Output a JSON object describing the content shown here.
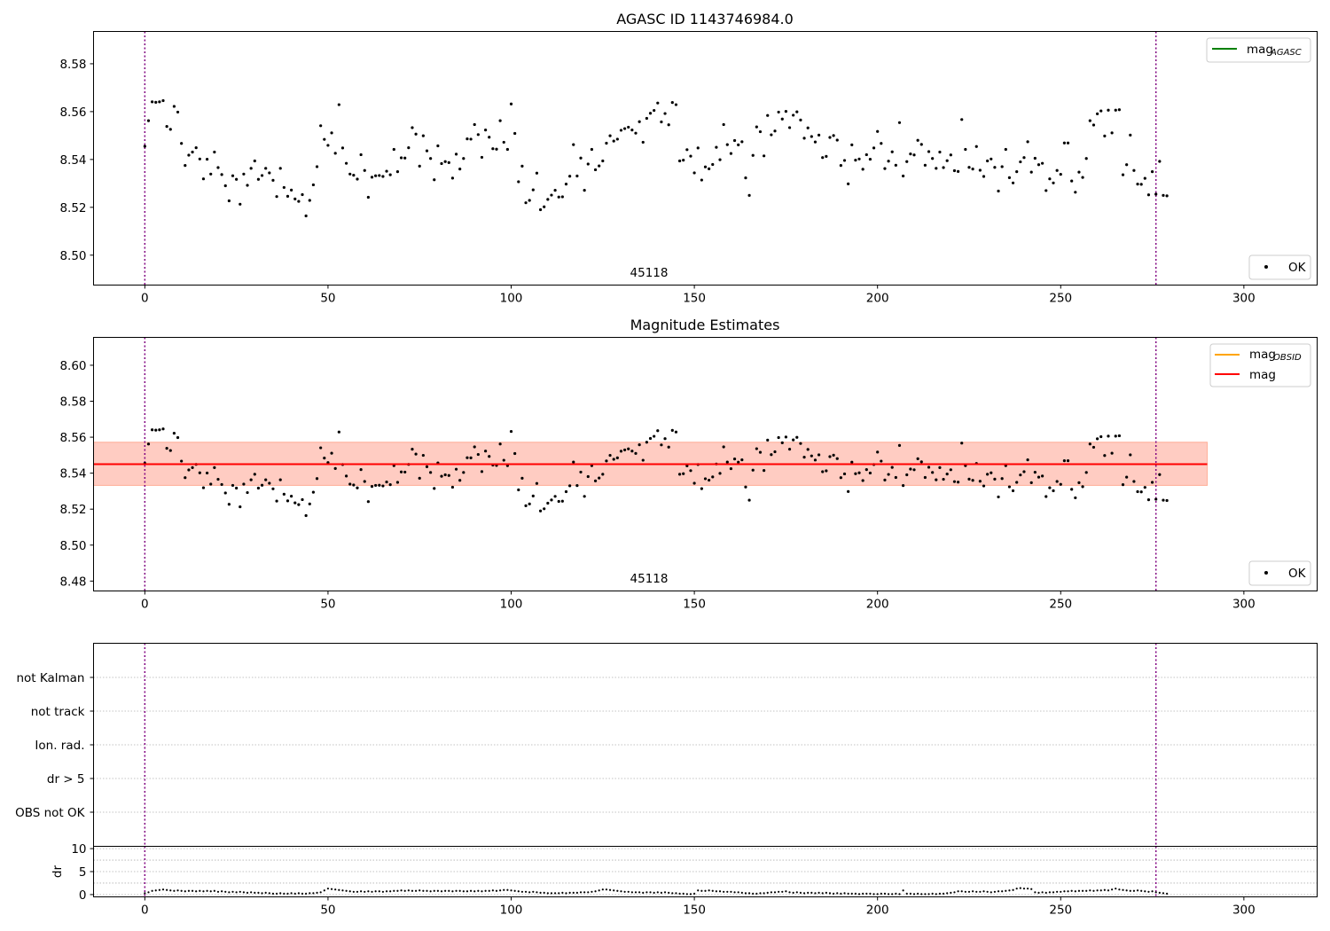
{
  "chart_data": [
    {
      "type": "scatter",
      "title": "AGASC ID 1143746984.0",
      "xlim": [
        -14,
        320
      ],
      "ylim": [
        8.4875,
        8.5935
      ],
      "xticks": [
        0,
        50,
        100,
        150,
        200,
        250,
        300
      ],
      "yticks": [
        8.5,
        8.52,
        8.54,
        8.56,
        8.58
      ],
      "ytick_labels": [
        "8.50",
        "8.52",
        "8.54",
        "8.56",
        "8.58"
      ],
      "grid": false,
      "vlines": [
        0,
        276
      ],
      "annotation": {
        "text": "45118",
        "x": 138
      },
      "legend_top": {
        "placement": "top-right",
        "entries": [
          {
            "label": "mag",
            "subscript": "AGASC",
            "color": "#008000",
            "kind": "line"
          }
        ]
      },
      "legend_bottom": {
        "placement": "bottom-right",
        "entries": [
          {
            "label": "OK",
            "kind": "point",
            "color": "#000000"
          }
        ]
      },
      "series": [
        {
          "name": "OK",
          "color": "#000000",
          "ref": "points"
        }
      ]
    },
    {
      "type": "scatter",
      "title": "Magnitude Estimates",
      "xlim": [
        -14,
        320
      ],
      "ylim": [
        8.4745,
        8.6155
      ],
      "xticks": [
        0,
        50,
        100,
        150,
        200,
        250,
        300
      ],
      "yticks": [
        8.48,
        8.5,
        8.52,
        8.54,
        8.56,
        8.58,
        8.6
      ],
      "ytick_labels": [
        "8.48",
        "8.50",
        "8.52",
        "8.54",
        "8.56",
        "8.58",
        "8.60"
      ],
      "grid": false,
      "vlines": [
        0,
        276
      ],
      "annotation": {
        "text": "45118",
        "x": 138
      },
      "hlines": [
        {
          "name": "mag_OBSID",
          "y": 8.545,
          "x": [
            -14,
            290
          ],
          "color": "#ffa500",
          "band": [
            8.5332,
            8.5572
          ],
          "band_color": "#ffa07a"
        },
        {
          "name": "mag",
          "y": 8.545,
          "x": [
            -14,
            290
          ],
          "color": "#ff0000",
          "band": [
            8.5332,
            8.5572
          ],
          "band_color": "#ffc0cb"
        }
      ],
      "legend_top": {
        "placement": "top-right",
        "entries": [
          {
            "label": "mag",
            "subscript": "OBSID",
            "color": "#ffa500",
            "kind": "line"
          },
          {
            "label": "mag",
            "subscript": "",
            "color": "#ff0000",
            "kind": "line"
          }
        ]
      },
      "legend_bottom": {
        "placement": "bottom-right",
        "entries": [
          {
            "label": "OK",
            "kind": "point",
            "color": "#000000"
          }
        ]
      },
      "series": [
        {
          "name": "OK",
          "color": "#000000",
          "ref": "points"
        }
      ]
    },
    {
      "type": "table",
      "title": "",
      "xlim": [
        -14,
        320
      ],
      "flags": [
        "not Kalman",
        "not track",
        "Ion. rad.",
        "dr > 5",
        "OBS not OK"
      ],
      "vlines": [
        0,
        276
      ]
    },
    {
      "type": "scatter",
      "title": "",
      "ylabel": "dr",
      "xlim": [
        -14,
        320
      ],
      "ylim": [
        -0.5,
        10.5
      ],
      "xticks": [
        0,
        50,
        100,
        150,
        200,
        250,
        300
      ],
      "yticks": [
        0,
        5,
        10
      ],
      "ytick_labels": [
        "0",
        "5",
        "10"
      ],
      "gridlines": [
        0,
        2.5,
        5,
        7.5,
        10
      ],
      "vlines": [
        0,
        276
      ],
      "series": [
        {
          "name": "dr",
          "color": "#000000",
          "ref": "dr"
        }
      ]
    }
  ],
  "points": [
    8.5455,
    8.5562,
    8.5641,
    8.5639,
    8.5641,
    8.5646,
    8.5538,
    8.5526,
    8.5622,
    8.5598,
    8.5467,
    8.5375,
    8.5418,
    8.5431,
    8.5449,
    8.5402,
    8.5319,
    8.5401,
    8.5339,
    8.5431,
    8.5366,
    8.5337,
    8.529,
    8.5227,
    8.5332,
    8.5317,
    8.5213,
    8.5339,
    8.5292,
    8.5363,
    8.5394,
    8.5317,
    8.5333,
    8.5363,
    8.5344,
    8.5313,
    8.5245,
    8.5363,
    8.5283,
    8.5246,
    8.5272,
    8.5235,
    8.5225,
    8.5253,
    8.5164,
    8.5229,
    8.5294,
    8.537,
    8.5541,
    8.5484,
    8.5459,
    8.5511,
    8.5426,
    8.5629,
    8.5448,
    8.5384,
    8.5339,
    8.5334,
    8.5318,
    8.542,
    8.5354,
    8.5242,
    8.5326,
    8.5332,
    8.5333,
    8.5329,
    8.5351,
    8.5336,
    8.5442,
    8.5349,
    8.5407,
    8.5406,
    8.5449,
    8.5533,
    8.5506,
    8.5372,
    8.5499,
    8.5436,
    8.5404,
    8.5315,
    8.5457,
    8.5383,
    8.5391,
    8.5387,
    8.5322,
    8.5422,
    8.536,
    8.5404,
    8.5486,
    8.5485,
    8.5546,
    8.5504,
    8.5409,
    8.5523,
    8.5493,
    8.5445,
    8.5443,
    8.5562,
    8.5472,
    8.5442,
    8.5632,
    8.5509,
    8.5307,
    8.5372,
    8.5219,
    8.5229,
    8.5273,
    8.5343,
    8.519,
    8.5202,
    8.5233,
    8.5251,
    8.5271,
    8.5243,
    8.5244,
    8.5297,
    8.533,
    8.5462,
    8.5331,
    8.5406,
    8.5271,
    8.5381,
    8.5442,
    8.5357,
    8.5373,
    8.5394,
    8.5468,
    8.5499,
    8.5477,
    8.5485,
    8.5522,
    8.5529,
    8.5535,
    8.5523,
    8.551,
    8.5558,
    8.5472,
    8.5572,
    8.5593,
    8.5605,
    8.5636,
    8.5557,
    8.5592,
    8.5545,
    8.5638,
    8.5629,
    8.5394,
    8.5397,
    8.5441,
    8.5414,
    8.5344,
    8.5448,
    8.5314,
    8.5369,
    8.5361,
    8.5379,
    8.5451,
    8.5399,
    8.5546,
    8.5462,
    8.5425,
    8.5479,
    8.5461,
    8.5474,
    8.5323,
    8.525,
    8.5417,
    8.5536,
    8.5516,
    8.5415,
    8.5584,
    8.5503,
    8.5519,
    8.5598,
    8.5569,
    8.5601,
    8.5533,
    8.5585,
    8.5599,
    8.5565,
    8.5489,
    8.5532,
    8.5496,
    8.5473,
    8.5502,
    8.5408,
    8.5413,
    8.5492,
    8.55,
    8.5481,
    8.5375,
    8.5396,
    8.5298,
    8.5461,
    8.5397,
    8.5402,
    8.5359,
    8.542,
    8.5401,
    8.5448,
    8.5517,
    8.5467,
    8.5362,
    8.5393,
    8.5432,
    8.5376,
    8.5554,
    8.5331,
    8.5391,
    8.5423,
    8.5419,
    8.548,
    8.5463,
    8.5376,
    8.5433,
    8.5404,
    8.5363,
    8.5431,
    8.5366,
    8.5395,
    8.5419,
    8.5353,
    8.535,
    8.5567,
    8.5442,
    8.5367,
    8.536,
    8.5454,
    8.5355,
    8.5329,
    8.5394,
    8.5402,
    8.5367,
    8.5268,
    8.537,
    8.5442,
    8.5324,
    8.5302,
    8.5349,
    8.539,
    8.5408,
    8.5474,
    8.5347,
    8.5405,
    8.5378,
    8.5384,
    8.527,
    8.5319,
    8.5302,
    8.5354,
    8.5338,
    8.5469,
    8.5469,
    8.531,
    8.5263,
    8.5347,
    8.5325,
    8.5404,
    8.5562,
    8.5544,
    8.5591,
    8.5603,
    8.5498,
    8.5606,
    8.5511,
    8.5606,
    8.5608,
    8.5336,
    8.5378,
    8.5502,
    8.5354,
    8.5297,
    8.5296,
    8.5321,
    8.5252,
    8.5349,
    8.5255,
    8.5392,
    8.525,
    8.5248
  ],
  "dr": [
    0.3,
    0.5,
    0.8,
    0.9,
    1.0,
    1.1,
    1.0,
    0.9,
    0.8,
    0.9,
    0.8,
    0.7,
    0.8,
    0.8,
    0.7,
    0.8,
    0.7,
    0.8,
    0.7,
    0.8,
    0.6,
    0.7,
    0.6,
    0.5,
    0.6,
    0.5,
    0.6,
    0.5,
    0.4,
    0.5,
    0.4,
    0.4,
    0.3,
    0.4,
    0.3,
    0.2,
    0.2,
    0.3,
    0.2,
    0.2,
    0.3,
    0.2,
    0.3,
    0.2,
    0.2,
    0.3,
    0.3,
    0.4,
    0.5,
    0.9,
    1.3,
    1.2,
    1.1,
    1.0,
    0.9,
    0.8,
    0.7,
    0.6,
    0.6,
    0.7,
    0.6,
    0.7,
    0.6,
    0.7,
    0.7,
    0.6,
    0.7,
    0.7,
    0.8,
    0.8,
    0.9,
    0.8,
    0.9,
    0.8,
    0.8,
    0.9,
    0.8,
    0.8,
    0.7,
    0.8,
    0.8,
    0.7,
    0.8,
    0.8,
    0.7,
    0.8,
    0.8,
    0.7,
    0.7,
    0.8,
    0.7,
    0.8,
    0.7,
    0.8,
    0.8,
    0.9,
    0.8,
    0.9,
    1.0,
    1.0,
    0.9,
    0.8,
    0.7,
    0.6,
    0.6,
    0.5,
    0.6,
    0.5,
    0.4,
    0.4,
    0.3,
    0.3,
    0.3,
    0.3,
    0.4,
    0.3,
    0.4,
    0.4,
    0.4,
    0.5,
    0.5,
    0.5,
    0.6,
    0.7,
    0.9,
    1.1,
    1.1,
    1.0,
    0.9,
    0.8,
    0.7,
    0.6,
    0.6,
    0.5,
    0.5,
    0.5,
    0.4,
    0.5,
    0.5,
    0.4,
    0.5,
    0.4,
    0.5,
    0.4,
    0.3,
    0.3,
    0.2,
    0.2,
    0.1,
    0.1,
    0.2,
    0.9,
    0.8,
    0.8,
    0.9,
    0.8,
    0.7,
    0.7,
    0.6,
    0.6,
    0.6,
    0.5,
    0.5,
    0.4,
    0.3,
    0.3,
    0.2,
    0.2,
    0.3,
    0.3,
    0.4,
    0.5,
    0.5,
    0.6,
    0.6,
    0.7,
    0.5,
    0.4,
    0.5,
    0.4,
    0.3,
    0.4,
    0.4,
    0.3,
    0.4,
    0.3,
    0.4,
    0.3,
    0.2,
    0.3,
    0.2,
    0.3,
    0.2,
    0.2,
    0.2,
    0.1,
    0.2,
    0.2,
    0.2,
    0.1,
    0.1,
    0.2,
    0.2,
    0.1,
    0.1,
    0.2,
    0.1,
    0.9,
    0.2,
    0.2,
    0.1,
    0.2,
    0.1,
    0.1,
    0.1,
    0.2,
    0.1,
    0.2,
    0.2,
    0.3,
    0.4,
    0.5,
    0.7,
    0.7,
    0.6,
    0.6,
    0.7,
    0.6,
    0.6,
    0.7,
    0.6,
    0.5,
    0.6,
    0.7,
    0.7,
    0.8,
    0.9,
    1.0,
    1.3,
    1.4,
    1.3,
    1.3,
    1.2,
    0.5,
    0.4,
    0.5,
    0.4,
    0.5,
    0.5,
    0.6,
    0.6,
    0.7,
    0.7,
    0.8,
    0.7,
    0.8,
    0.8,
    0.8,
    0.9,
    0.8,
    0.9,
    0.9,
    1.0,
    0.9,
    1.1,
    1.3,
    1.1,
    1.0,
    0.9,
    0.8,
    0.8,
    0.9,
    0.8,
    0.7,
    0.6,
    0.7,
    0.5,
    0.4,
    0.3,
    0.2
  ]
}
